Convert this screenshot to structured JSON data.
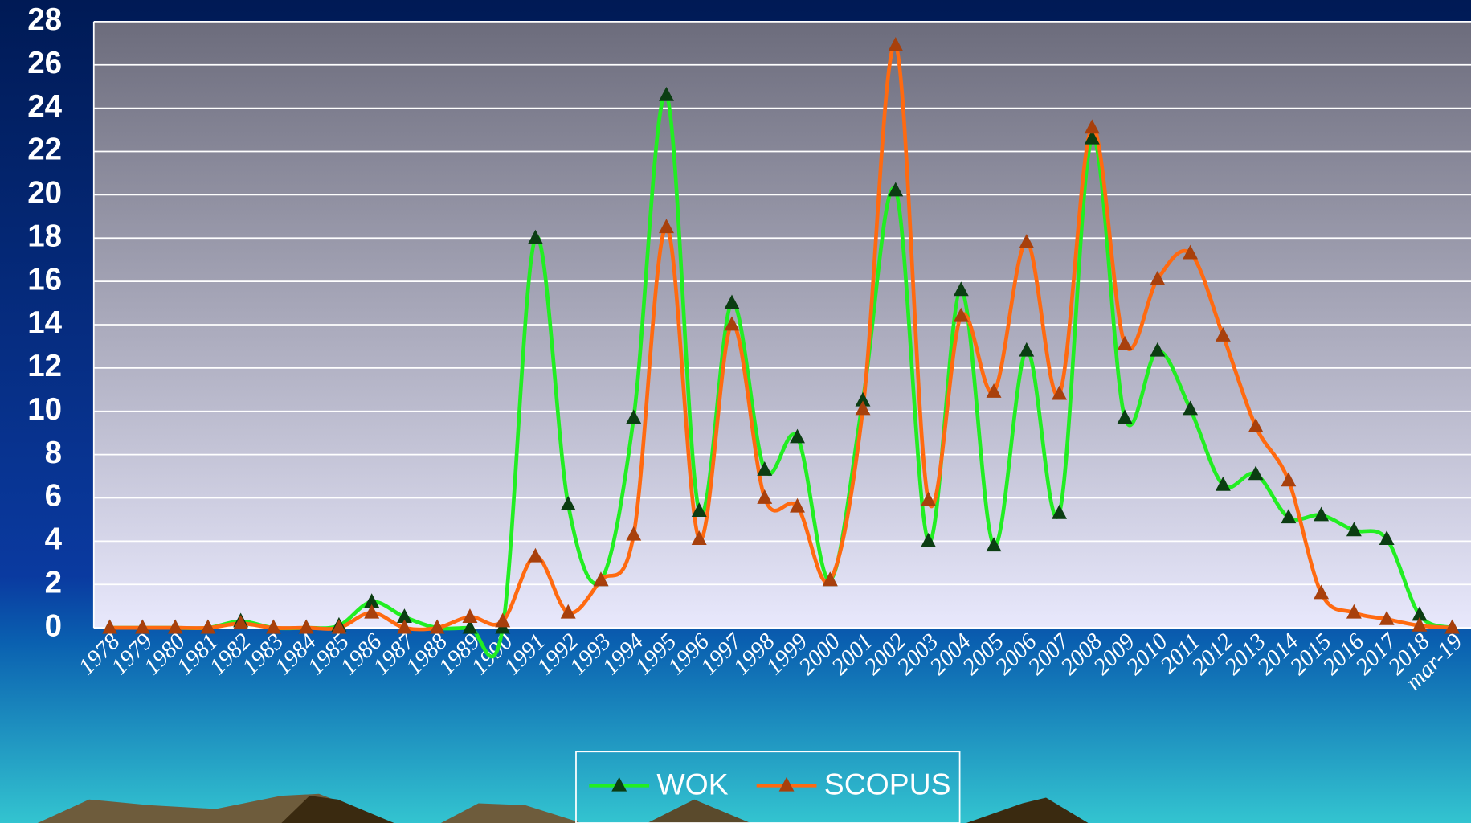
{
  "chart_data": {
    "type": "line",
    "categories": [
      "1978",
      "1979",
      "1980",
      "1981",
      "1982",
      "1983",
      "1984",
      "1985",
      "1986",
      "1987",
      "1988",
      "1989",
      "1990",
      "1991",
      "1992",
      "1993",
      "1994",
      "1995",
      "1996",
      "1997",
      "1998",
      "1999",
      "2000",
      "2001",
      "2002",
      "2003",
      "2004",
      "2005",
      "2006",
      "2007",
      "2008",
      "2009",
      "2010",
      "2011",
      "2012",
      "2013",
      "2014",
      "2015",
      "2016",
      "2017",
      "2018",
      "mar-19"
    ],
    "series": [
      {
        "name": "WOK",
        "color": "#22ee22",
        "marker_color": "#0b3d12",
        "values": [
          0,
          0,
          0,
          0,
          0.3,
          0,
          0,
          0.1,
          1.2,
          0.5,
          0,
          0,
          0,
          18,
          5.7,
          2.2,
          9.7,
          24.6,
          5.4,
          15,
          7.3,
          8.8,
          2.2,
          10.5,
          20.2,
          4,
          15.6,
          3.8,
          12.8,
          5.3,
          22.6,
          9.7,
          12.8,
          10.1,
          6.6,
          7.1,
          5.1,
          5.2,
          4.5,
          4.1,
          0.6,
          0
        ]
      },
      {
        "name": "SCOPUS",
        "color": "#ff6a10",
        "marker_color": "#a8400c",
        "values": [
          0,
          0,
          0,
          0,
          0.2,
          0,
          0,
          0,
          0.7,
          0,
          0,
          0.5,
          0.3,
          3.3,
          0.7,
          2.2,
          4.3,
          18.5,
          4.1,
          14,
          6,
          5.6,
          2.2,
          10.1,
          26.9,
          5.9,
          14.4,
          10.9,
          17.8,
          10.8,
          23.1,
          13.1,
          16.1,
          17.3,
          13.5,
          9.3,
          6.8,
          1.6,
          0.7,
          0.4,
          0.1,
          0
        ]
      }
    ],
    "ylim": [
      0,
      28
    ],
    "yticks": [
      0,
      2,
      4,
      6,
      8,
      10,
      12,
      14,
      16,
      18,
      20,
      22,
      24,
      26,
      28
    ],
    "grid": true,
    "legend": "bottom"
  }
}
